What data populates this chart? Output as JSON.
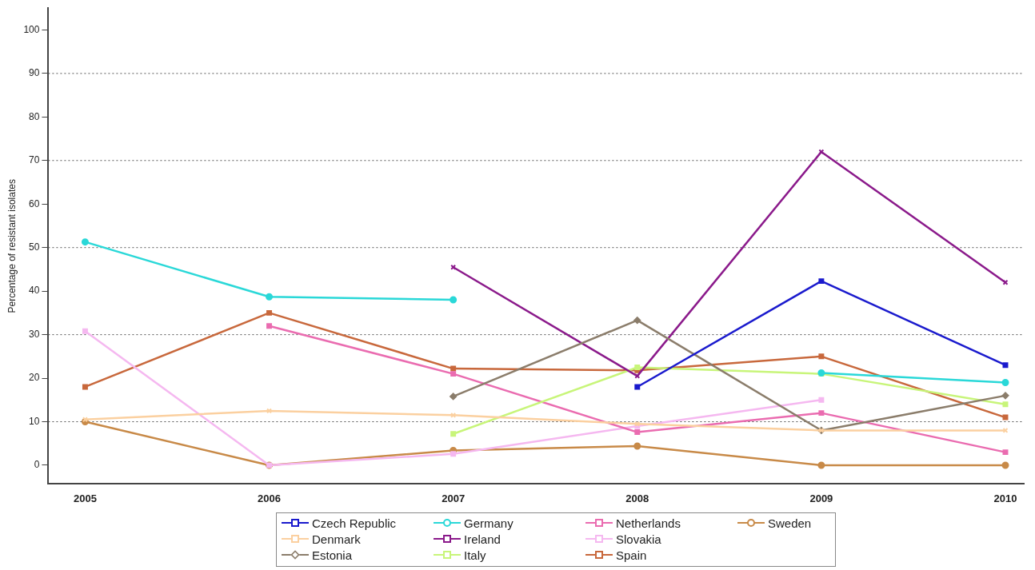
{
  "chart_data": {
    "type": "line",
    "ylabel": "Percentage of resistant isolates",
    "x": [
      2005,
      2006,
      2007,
      2008,
      2009,
      2010
    ],
    "xlim": [
      2004.8,
      2010.1
    ],
    "xticks": [
      2005,
      2006,
      2007,
      2008,
      2009,
      2010
    ],
    "ylim": [
      -4.3,
      105
    ],
    "yticks": [
      0,
      10,
      20,
      30,
      40,
      50,
      60,
      70,
      80,
      90,
      100
    ],
    "grid": false,
    "legend": "bottom",
    "ref_lines": [
      {
        "axis": "y",
        "value": 10,
        "line_style": "dotted",
        "color": "#555555"
      },
      {
        "axis": "y",
        "value": 30,
        "line_style": "dotted",
        "color": "#555555"
      },
      {
        "axis": "y",
        "value": 50,
        "line_style": "dotted",
        "color": "#555555"
      },
      {
        "axis": "y",
        "value": 70,
        "line_style": "dotted",
        "color": "#555555"
      },
      {
        "axis": "y",
        "value": 90,
        "line_style": "dotted",
        "color": "#555555"
      }
    ],
    "series": [
      {
        "name": "Czech Republic",
        "color": "#1a1acd",
        "marker": "square",
        "values": [
          null,
          null,
          null,
          18,
          42.3,
          23
        ]
      },
      {
        "name": "Denmark",
        "color": "#fbd0a0",
        "marker": "cross",
        "values": [
          10.5,
          12.5,
          11.5,
          9.5,
          8,
          8
        ]
      },
      {
        "name": "Estonia",
        "color": "#8b7d6b",
        "marker": "diamond",
        "values": [
          null,
          null,
          15.8,
          33.3,
          8,
          16
        ]
      },
      {
        "name": "Germany",
        "color": "#2ad8d8",
        "marker": "circle",
        "values": [
          51.3,
          38.7,
          38,
          null,
          21.2,
          19
        ]
      },
      {
        "name": "Ireland",
        "color": "#8b1a8b",
        "marker": "cross",
        "values": [
          null,
          null,
          45.5,
          20.5,
          72,
          42
        ]
      },
      {
        "name": "Italy",
        "color": "#c8f57a",
        "marker": "square",
        "values": [
          null,
          null,
          7.2,
          22.5,
          21,
          14
        ]
      },
      {
        "name": "Netherlands",
        "color": "#ea6cb0",
        "marker": "square",
        "values": [
          null,
          32,
          21,
          7.6,
          12,
          3
        ]
      },
      {
        "name": "Slovakia",
        "color": "#f5b8f0",
        "marker": "square",
        "values": [
          30.8,
          0,
          2.6,
          9,
          15,
          null
        ]
      },
      {
        "name": "Spain",
        "color": "#c8683c",
        "marker": "square",
        "values": [
          18,
          35,
          22.2,
          21.8,
          25,
          11
        ]
      },
      {
        "name": "Sweden",
        "color": "#c88a48",
        "marker": "circle",
        "values": [
          10,
          0,
          3.4,
          4.4,
          0,
          0
        ]
      }
    ]
  }
}
